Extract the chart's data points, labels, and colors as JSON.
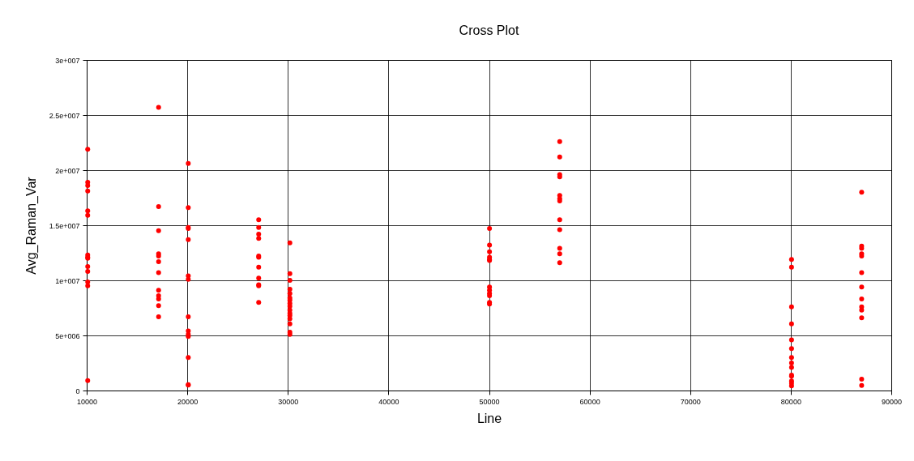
{
  "chart_data": {
    "type": "scatter",
    "title": "Cross Plot",
    "xlabel": "Line",
    "ylabel": "Avg_Raman_Var",
    "x": [
      10100,
      10100,
      10100,
      10100,
      10100,
      10100,
      10100,
      10100,
      10100,
      10100,
      10100,
      10100,
      10100,
      10100,
      17150,
      17150,
      17150,
      17150,
      17150,
      17150,
      17150,
      17150,
      17150,
      17150,
      17150,
      17150,
      20100,
      20100,
      20100,
      20100,
      20100,
      20100,
      20100,
      20100,
      20100,
      20100,
      20100,
      20100,
      20100,
      20100,
      27100,
      27100,
      27100,
      27100,
      27100,
      27100,
      27100,
      27100,
      27100,
      27100,
      27100,
      30200,
      30200,
      30200,
      30200,
      30200,
      30200,
      30200,
      30200,
      30200,
      30200,
      30200,
      30200,
      30200,
      30200,
      30200,
      30200,
      50050,
      50050,
      50050,
      50050,
      50050,
      50050,
      50050,
      50050,
      50050,
      50050,
      50050,
      50050,
      57030,
      57030,
      57030,
      57030,
      57030,
      57030,
      57030,
      57030,
      57030,
      57030,
      57030,
      57030,
      80080,
      80080,
      80080,
      80080,
      80080,
      80080,
      80080,
      80080,
      80080,
      80080,
      80080,
      80080,
      80080,
      80080,
      87050,
      87050,
      87050,
      87050,
      87050,
      87050,
      87050,
      87050,
      87050,
      87050,
      87050,
      87050,
      87050
    ],
    "series": [
      {
        "color": "#ff0000",
        "values": [
          21900000,
          18900000,
          18600000,
          18100000,
          16300000,
          15900000,
          12300000,
          12100000,
          12000000,
          11250000,
          10800000,
          9850000,
          9500000,
          900000,
          25700000,
          16700000,
          14500000,
          12400000,
          12200000,
          11700000,
          10700000,
          9100000,
          8600000,
          8300000,
          7700000,
          6700000,
          20600000,
          16600000,
          14800000,
          14700000,
          13700000,
          10400000,
          10100000,
          6700000,
          5400000,
          5100000,
          4900000,
          3000000,
          540000,
          500000,
          15500000,
          14800000,
          14200000,
          13800000,
          12200000,
          12100000,
          11200000,
          10200000,
          9600000,
          9500000,
          8000000,
          13400000,
          10600000,
          10000000,
          9200000,
          8800000,
          8400000,
          8200000,
          7900000,
          7650000,
          7300000,
          7000000,
          6800000,
          6500000,
          6050000,
          5300000,
          5100000,
          14700000,
          13200000,
          12600000,
          12100000,
          11900000,
          11800000,
          9400000,
          9100000,
          8800000,
          8600000,
          8000000,
          7850000,
          22600000,
          21200000,
          19600000,
          19400000,
          17700000,
          17400000,
          17200000,
          15500000,
          14600000,
          12900000,
          12400000,
          11600000,
          11900000,
          11200000,
          7600000,
          6050000,
          4600000,
          3800000,
          3000000,
          2500000,
          2100000,
          1400000,
          1300000,
          860000,
          660000,
          420000,
          18000000,
          13100000,
          12900000,
          12400000,
          12200000,
          10700000,
          9400000,
          8300000,
          7600000,
          7300000,
          6600000,
          1030000,
          460000
        ]
      }
    ],
    "xlim": [
      10000,
      90000
    ],
    "xticks": [
      10000,
      20000,
      30000,
      40000,
      50000,
      60000,
      70000,
      80000,
      90000
    ],
    "ylim": [
      0,
      30000000
    ],
    "yticks": [
      0,
      {
        "value": 5000000,
        "label": "5e+006"
      },
      {
        "value": 10000000,
        "label": "1e+007"
      },
      {
        "value": 15000000,
        "label": "1.5e+007"
      },
      {
        "value": 20000000,
        "label": "2e+007"
      },
      {
        "value": 25000000,
        "label": "2.5e+007"
      },
      {
        "value": 30000000,
        "label": "3e+007"
      }
    ],
    "grid": true,
    "marker": "circle"
  }
}
